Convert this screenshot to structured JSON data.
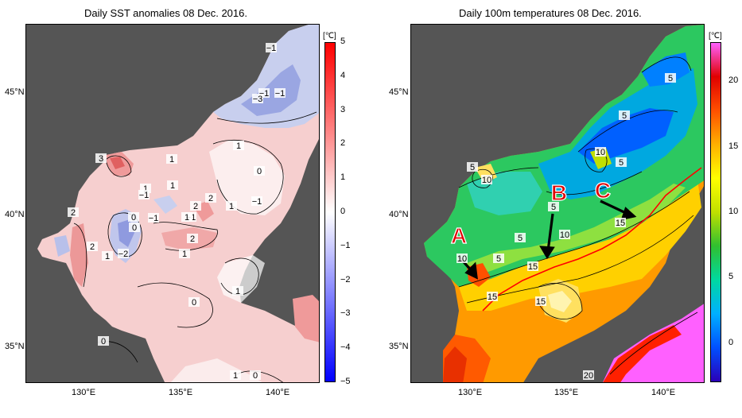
{
  "panels": [
    {
      "title": "Daily SST anomalies 08 Dec. 2016.",
      "unit": "[℃]",
      "y_ticks": [
        "45°N",
        "40°N",
        "35°N"
      ],
      "x_ticks": [
        "130°E",
        "135°E",
        "140°E"
      ],
      "colorbar_ticks": [
        "5",
        "4",
        "3",
        "2",
        "1",
        "0",
        "−1",
        "−2",
        "−3",
        "−4",
        "−5"
      ],
      "colorbar_range": [
        -5,
        5
      ],
      "colorbar_colors": [
        "#0000ff",
        "#ffffff",
        "#ff0000"
      ],
      "contour_labels": [
        "−1",
        "−1",
        "−3",
        "−1",
        "1",
        "3",
        "1",
        "1",
        "0",
        "−1",
        "1",
        "−1",
        "2",
        "1",
        "−1",
        "2",
        "0",
        "−1",
        "0",
        "1",
        "2",
        "2",
        "2",
        "−2",
        "1",
        "1",
        "0",
        "1",
        "0",
        "0",
        "1"
      ]
    },
    {
      "title": "Daily 100m temperatures 08 Dec. 2016.",
      "unit": "[℃]",
      "y_ticks": [
        "45°N",
        "40°N",
        "35°N"
      ],
      "x_ticks": [
        "130°E",
        "135°E",
        "140°E"
      ],
      "colorbar_ticks": [
        "20",
        "15",
        "10",
        "5",
        "0"
      ],
      "colorbar_range": [
        -3,
        23
      ],
      "colorbar_colors": [
        "#2a00b8",
        "#0050ff",
        "#00b0ff",
        "#00d8a0",
        "#30c030",
        "#c0e000",
        "#ffff00",
        "#ffb000",
        "#ff5000",
        "#e00000",
        "#ff60ff"
      ],
      "contour_labels": [
        "5",
        "5",
        "10",
        "5",
        "5",
        "10",
        "5",
        "5",
        "10",
        "15",
        "10",
        "5",
        "15",
        "15",
        "15",
        "20"
      ],
      "annotations": [
        "A",
        "B",
        "C"
      ]
    }
  ]
}
